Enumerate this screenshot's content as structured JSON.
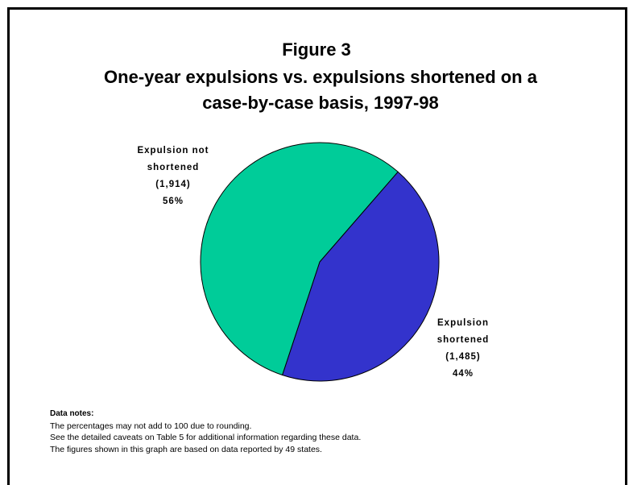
{
  "chart_data": {
    "type": "pie",
    "title": "Figure 3",
    "subtitle": "One-year expulsions vs. expulsions shortened on a case-by-case basis, 1997-98",
    "categories": [
      "Expulsion shortened",
      "Expulsion not shortened"
    ],
    "values": [
      1485,
      1914
    ],
    "value_labels": [
      "(1,485)",
      "(1,914)"
    ],
    "percents": [
      44,
      56
    ],
    "percent_labels": [
      "44%",
      "56%"
    ],
    "colors": [
      "#3333cc",
      "#00cc99"
    ],
    "notes_title": "Data notes:",
    "notes": [
      "The percentages may not add to 100 due to rounding.",
      "See the detailed caveats on Table 5 for additional information regarding these data.",
      "The figures shown in this graph are based on data reported by 49 states."
    ]
  }
}
